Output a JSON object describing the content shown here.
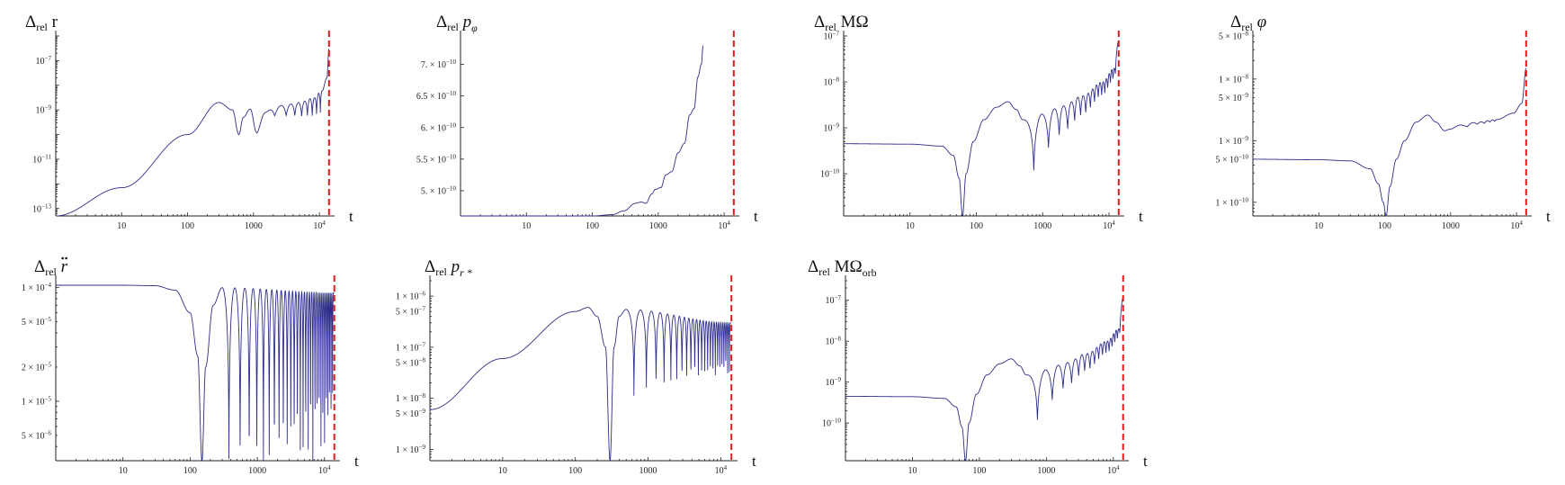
{
  "chart_data": [
    {
      "type": "line",
      "title": "Δrel r",
      "title_parts": {
        "main": "Δ",
        "sub": "rel",
        "rest": " r",
        "rest_italic": false,
        "rest_sub": "",
        "accent": ""
      },
      "xlabel": "t",
      "xscale": "log",
      "yscale": "log",
      "xlim": [
        1,
        17000
      ],
      "ylim": [
        5e-14,
        1e-06
      ],
      "xticks": [
        10,
        100,
        1000,
        10000
      ],
      "xtick_labels": [
        "10",
        "100",
        "1000",
        "10^4"
      ],
      "yticks": [
        1e-13,
        1e-11,
        1e-09,
        1e-07
      ],
      "ytick_labels": [
        "10^-13",
        "10^-11",
        "10^-9",
        "10^-7"
      ],
      "marker_t": 14000,
      "series": [
        {
          "t": [
            1,
            10,
            100,
            300,
            480,
            600,
            700,
            900,
            1100,
            1500,
            2000,
            3000,
            5000,
            8000,
            11000,
            13000,
            14000
          ],
          "y": [
            5e-14,
            7e-13,
            1e-10,
            2e-09,
            1e-09,
            1e-10,
            5e-10,
            1.2e-09,
            2e-10,
            8e-10,
            1.3e-09,
            1.6e-09,
            2e-09,
            3e-09,
            6e-09,
            2e-08,
            3e-07
          ],
          "oscillation": {
            "start_t": 700,
            "end_t": 11000,
            "cycles": 9,
            "min_depth": 0.35,
            "max_depth": 0.88
          }
        }
      ]
    },
    {
      "type": "line",
      "title": "Δrel pφ",
      "title_parts": {
        "main": "Δ",
        "sub": "rel",
        "rest": " p",
        "rest_italic": true,
        "rest_sub": "φ",
        "accent": ""
      },
      "xlabel": "t",
      "xscale": "log",
      "yscale": "linear",
      "xlim": [
        1,
        17000
      ],
      "ylim": [
        4.6e-10,
        7.45e-10
      ],
      "xticks": [
        10,
        100,
        1000,
        10000
      ],
      "xtick_labels": [
        "10",
        "100",
        "1000",
        "10^4"
      ],
      "yticks": [
        5e-10,
        5.5e-10,
        6e-10,
        6.5e-10,
        7e-10
      ],
      "ytick_labels": [
        "5. × 10^-10",
        "5.5 × 10^-10",
        "6. × 10^-10",
        "6.5 × 10^-10",
        "7. × 10^-10"
      ],
      "marker_t": 14000,
      "series": [
        {
          "t": [
            1,
            100,
            200,
            300,
            450,
            550,
            650,
            800,
            900,
            1100,
            1300,
            1600,
            2000,
            2500,
            3000,
            3500,
            4000,
            4500,
            4800
          ],
          "y": [
            4.6e-10,
            4.6e-10,
            4.62e-10,
            4.68e-10,
            4.8e-10,
            4.82e-10,
            4.8e-10,
            4.95e-10,
            5.02e-10,
            5.05e-10,
            5.25e-10,
            5.3e-10,
            5.6e-10,
            5.75e-10,
            6.2e-10,
            6.3e-10,
            6.8e-10,
            7e-10,
            7.3e-10
          ],
          "oscillation": null
        }
      ]
    },
    {
      "type": "line",
      "title": "Δrel MΩ",
      "title_parts": {
        "main": "Δ",
        "sub": "rel",
        "rest": " MΩ",
        "rest_italic": false,
        "rest_sub": "",
        "accent": ""
      },
      "xlabel": "t",
      "xscale": "log",
      "yscale": "log",
      "xlim": [
        1,
        17000
      ],
      "ylim": [
        1.2e-11,
        1e-07
      ],
      "xticks": [
        10,
        100,
        1000,
        10000
      ],
      "xtick_labels": [
        "10",
        "100",
        "1000",
        "10^4"
      ],
      "yticks": [
        1e-10,
        1e-09,
        1e-08,
        1e-07
      ],
      "ytick_labels": [
        "10^-10",
        "10^-9",
        "10^-8",
        "10^-7"
      ],
      "marker_t": 14000,
      "series": [
        {
          "t": [
            1,
            10,
            30,
            45,
            55,
            62,
            70,
            90,
            130,
            200,
            300,
            400,
            500,
            700,
            1000,
            2000,
            4000,
            8000,
            12000,
            14000
          ],
          "y": [
            4.5e-10,
            4.4e-10,
            4e-10,
            2.5e-10,
            8e-11,
            1.2e-11,
            1e-10,
            5e-10,
            1.5e-09,
            2.8e-09,
            3.7e-09,
            2.5e-09,
            1.5e-09,
            1.5e-09,
            2e-09,
            3e-09,
            5e-09,
            1e-08,
            2e-08,
            8e-08
          ],
          "oscillation": {
            "start_t": 520,
            "end_t": 13000,
            "cycles": 16,
            "min_depth": 0.99,
            "max_depth": 0.4
          }
        }
      ]
    },
    {
      "type": "line",
      "title": "Δrel φ",
      "title_parts": {
        "main": "Δ",
        "sub": "rel",
        "rest": " φ",
        "rest_italic": true,
        "rest_sub": "",
        "accent": ""
      },
      "xlabel": "t",
      "xscale": "log",
      "yscale": "log",
      "xlim": [
        1,
        17000
      ],
      "ylim": [
        6e-11,
        5e-08
      ],
      "xticks": [
        10,
        100,
        1000,
        10000
      ],
      "xtick_labels": [
        "10",
        "100",
        "1000",
        "10^4"
      ],
      "yticks": [
        1e-10,
        5e-10,
        1e-09,
        5e-09,
        1e-08,
        5e-08
      ],
      "ytick_labels": [
        "1 × 10^-10",
        "5 × 10^-10",
        "1 × 10^-9",
        "5 × 10^-9",
        "1 × 10^-8",
        "5 × 10^-8"
      ],
      "marker_t": 14000,
      "series": [
        {
          "t": [
            1,
            10,
            30,
            60,
            80,
            95,
            105,
            120,
            150,
            200,
            300,
            450,
            600,
            800,
            1000,
            1500,
            2500,
            5000,
            9000,
            12000,
            14000
          ],
          "y": [
            5e-10,
            4.9e-10,
            4.7e-10,
            3.5e-10,
            2e-10,
            1e-10,
            6e-11,
            1.8e-10,
            5e-10,
            1e-09,
            2e-09,
            2.6e-09,
            2e-09,
            1.5e-09,
            1.7e-09,
            1.8e-09,
            2e-09,
            2.2e-09,
            2.8e-09,
            4e-09,
            1.5e-08
          ],
          "oscillation": {
            "start_t": 600,
            "end_t": 5000,
            "cycles": 6,
            "min_depth": 0.12,
            "max_depth": 0.06
          }
        }
      ]
    },
    {
      "type": "line",
      "title": "Δrel r̈",
      "title_parts": {
        "main": "Δ",
        "sub": "rel",
        "rest": " r",
        "rest_italic": true,
        "rest_sub": "",
        "accent": "ddot"
      },
      "xlabel": "t",
      "xscale": "log",
      "yscale": "log",
      "xlim": [
        1,
        17000
      ],
      "ylim": [
        3e-06,
        0.000115
      ],
      "xticks": [
        10,
        100,
        1000,
        10000
      ],
      "xtick_labels": [
        "10",
        "100",
        "1000",
        "10^4"
      ],
      "yticks": [
        5e-06,
        1e-05,
        2e-05,
        5e-05,
        0.0001
      ],
      "ytick_labels": [
        "5 × 10^-6",
        "1 × 10^-5",
        "2 × 10^-5",
        "5 × 10^-5",
        "1 × 10^-4"
      ],
      "marker_t": 14000,
      "series": [
        {
          "t": [
            1,
            10,
            30,
            60,
            100,
            130,
            150,
            170,
            220,
            300,
            14000
          ],
          "y": [
            0.000105,
            0.000105,
            0.000104,
            9.5e-05,
            6e-05,
            2.5e-05,
            3e-06,
            2e-05,
            7e-05,
            0.0001,
            9e-05
          ],
          "oscillation": {
            "start_t": 300,
            "end_t": 13500,
            "cycles": 30,
            "min_depth": 0.97,
            "max_depth": 0.97
          }
        }
      ]
    },
    {
      "type": "line",
      "title": "Δrel pr*",
      "title_parts": {
        "main": "Δ",
        "sub": "rel",
        "rest": " p",
        "rest_italic": true,
        "rest_sub": "r *",
        "accent": ""
      },
      "xlabel": "t",
      "xscale": "log",
      "yscale": "log",
      "xlim": [
        1,
        17000
      ],
      "ylim": [
        6e-10,
        2e-06
      ],
      "xticks": [
        10,
        100,
        1000,
        10000
      ],
      "xtick_labels": [
        "10",
        "100",
        "1000",
        "10^4"
      ],
      "yticks": [
        1e-09,
        5e-09,
        1e-08,
        5e-08,
        1e-07,
        5e-07,
        1e-06
      ],
      "ytick_labels": [
        "1 × 10^-9",
        "5 × 10^-9",
        "1 × 10^-8",
        "5 × 10^-8",
        "1 × 10^-7",
        "5 × 10^-7",
        "1 × 10^-6"
      ],
      "marker_t": 14000,
      "series": [
        {
          "t": [
            1,
            10,
            100,
            150,
            200,
            260,
            300,
            340,
            400,
            500,
            14000
          ],
          "y": [
            6e-09,
            6e-08,
            5e-07,
            6e-07,
            4e-07,
            1e-07,
            6e-10,
            1e-07,
            4e-07,
            5.5e-07,
            3e-07
          ],
          "oscillation": {
            "start_t": 500,
            "end_t": 13500,
            "cycles": 24,
            "min_depth": 0.99,
            "max_depth": 0.9
          }
        }
      ]
    },
    {
      "type": "line",
      "title": "Δrel MΩorb",
      "title_parts": {
        "main": "Δ",
        "sub": "rel",
        "rest": " MΩ",
        "rest_italic": false,
        "rest_sub": "orb",
        "accent": ""
      },
      "xlabel": "t",
      "xscale": "log",
      "yscale": "log",
      "xlim": [
        1,
        17000
      ],
      "ylim": [
        1.2e-11,
        3e-07
      ],
      "xticks": [
        10,
        100,
        1000,
        10000
      ],
      "xtick_labels": [
        "10",
        "100",
        "1000",
        "10^4"
      ],
      "yticks": [
        1e-10,
        1e-09,
        1e-08,
        1e-07
      ],
      "ytick_labels": [
        "10^-10",
        "10^-9",
        "10^-8",
        "10^-7"
      ],
      "marker_t": 14000,
      "series": [
        {
          "t": [
            1,
            10,
            30,
            45,
            55,
            62,
            70,
            90,
            130,
            200,
            300,
            400,
            500,
            700,
            1000,
            2000,
            4000,
            8000,
            12000,
            14000
          ],
          "y": [
            4.5e-10,
            4.4e-10,
            4e-10,
            2.5e-10,
            8e-11,
            1.2e-11,
            1e-10,
            5e-10,
            1.5e-09,
            2.8e-09,
            3.7e-09,
            2.5e-09,
            1.5e-09,
            1.5e-09,
            2e-09,
            3e-09,
            5e-09,
            1e-08,
            2e-08,
            1.2e-07
          ],
          "oscillation": {
            "start_t": 520,
            "end_t": 13000,
            "cycles": 16,
            "min_depth": 0.99,
            "max_depth": 0.4
          }
        }
      ]
    }
  ]
}
